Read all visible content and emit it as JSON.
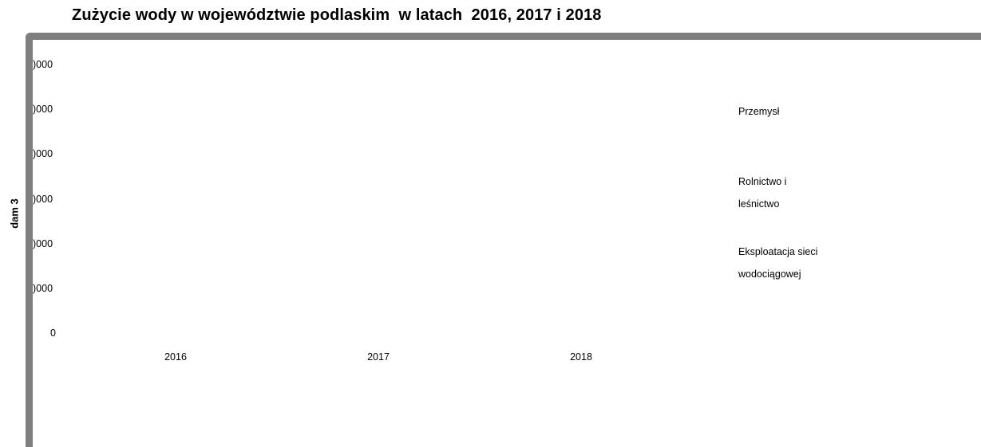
{
  "chart_data": {
    "type": "bar",
    "title": "Zużycie wody w województwie podlaskim  w latach  2016, 2017 i 2018",
    "ylabel": "dam 3",
    "categories": [
      "2016",
      "2017",
      "2018"
    ],
    "y_tick_labels": [
      ")000",
      ")000",
      ")000",
      ")000",
      ")000",
      ")000",
      "0"
    ],
    "series": [
      {
        "name": "Przemysł"
      },
      {
        "name": "Rolnictwo i leśnictwo"
      },
      {
        "name": "Eksploatacja sieci wodociągowej"
      }
    ],
    "legend_position": "right",
    "grid": false
  }
}
